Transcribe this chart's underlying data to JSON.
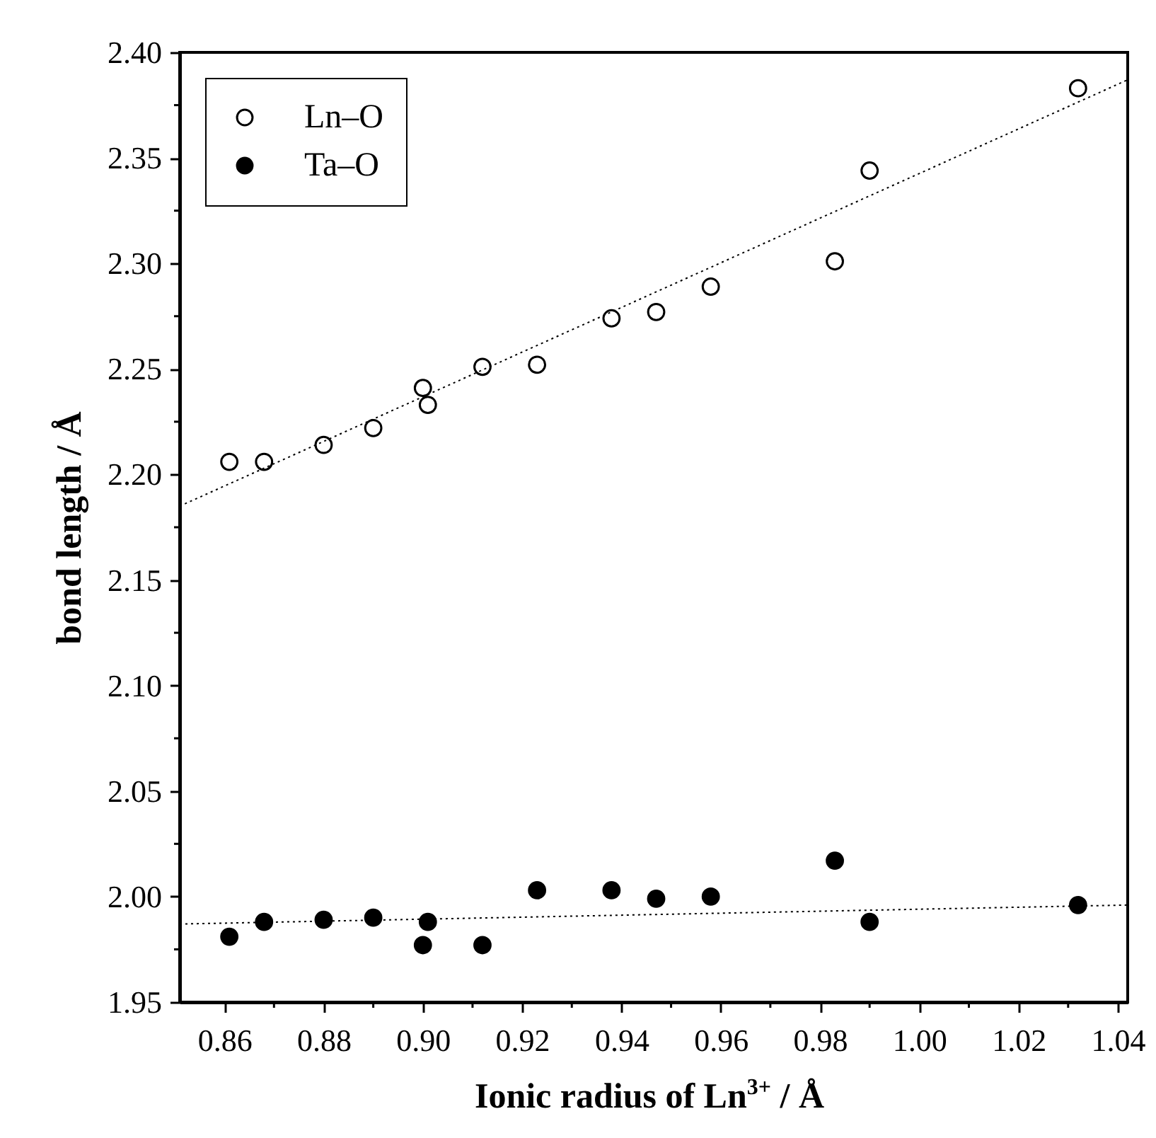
{
  "chart_data": {
    "type": "scatter",
    "xlabel": "Ionic radius of Ln$^{3+}$ / Å",
    "ylabel": "bond length / Å",
    "xlim": [
      0.851,
      1.042
    ],
    "ylim": [
      1.95,
      2.4
    ],
    "xticks": [
      0.86,
      {
        "value": 0.87,
        "label": null
      },
      0.88,
      {
        "value": 0.89,
        "label": null
      },
      {
        "value": 0.9,
        "label": "0.90"
      },
      {
        "value": 0.91,
        "label": null
      },
      0.92,
      {
        "value": 0.93,
        "label": null
      },
      0.94,
      {
        "value": 0.95,
        "label": null
      },
      0.96,
      {
        "value": 0.97,
        "label": null
      },
      0.98,
      {
        "value": 0.99,
        "label": null
      },
      {
        "value": 1,
        "label": "1.00"
      },
      {
        "value": 1.01,
        "label": null
      },
      1.02,
      {
        "value": 1.03,
        "label": null
      },
      1.04
    ],
    "yticks": [
      1.95,
      {
        "value": 1.975,
        "label": null
      },
      {
        "value": 2,
        "label": "2.00"
      },
      {
        "value": 2.025,
        "label": null
      },
      2.05,
      {
        "value": 2.075,
        "label": null
      },
      {
        "value": 2.1,
        "label": "2.10"
      },
      {
        "value": 2.125,
        "label": null
      },
      2.15,
      {
        "value": 2.175,
        "label": null
      },
      {
        "value": 2.2,
        "label": "2.20"
      },
      {
        "value": 2.225,
        "label": null
      },
      2.25,
      {
        "value": 2.275,
        "label": null
      },
      {
        "value": 2.3,
        "label": "2.30"
      },
      {
        "value": 2.325,
        "label": null
      },
      2.35,
      {
        "value": 2.375,
        "label": null
      },
      {
        "value": 2.4,
        "label": "2.40"
      }
    ],
    "legend": "top left",
    "marker": "circle",
    "grid": false,
    "series": [
      {
        "name": "Ln–O",
        "color": "#ffffff",
        "x": [
          0.861,
          0.868,
          0.88,
          0.89,
          0.9,
          0.901,
          0.912,
          0.923,
          0.938,
          0.947,
          0.958,
          0.983,
          0.99,
          1.032
        ],
        "values": [
          2.206,
          2.206,
          2.214,
          2.222,
          2.241,
          2.233,
          2.251,
          2.252,
          2.274,
          2.277,
          2.289,
          2.301,
          2.344,
          2.383
        ]
      },
      {
        "name": "Ta–O",
        "color": "#000000",
        "x": [
          0.861,
          0.868,
          0.88,
          0.89,
          0.9,
          0.901,
          0.912,
          0.923,
          0.938,
          0.947,
          0.958,
          0.983,
          0.99,
          1.032
        ],
        "values": [
          1.981,
          1.988,
          1.989,
          1.99,
          1.977,
          1.988,
          1.977,
          2.003,
          2.003,
          1.999,
          2.0,
          2.017,
          1.988,
          1.996
        ]
      },
      {
        "type": "line",
        "color": "#000000",
        "line_style": "dotted",
        "marker": "none",
        "x": [
          0.851,
          1.042
        ],
        "values": [
          2.185,
          2.387
        ]
      },
      {
        "type": "line",
        "color": "#000000",
        "line_style": "dotted",
        "marker": "none",
        "x": [
          0.851,
          1.042
        ],
        "values": [
          1.987,
          1.996
        ]
      }
    ]
  }
}
